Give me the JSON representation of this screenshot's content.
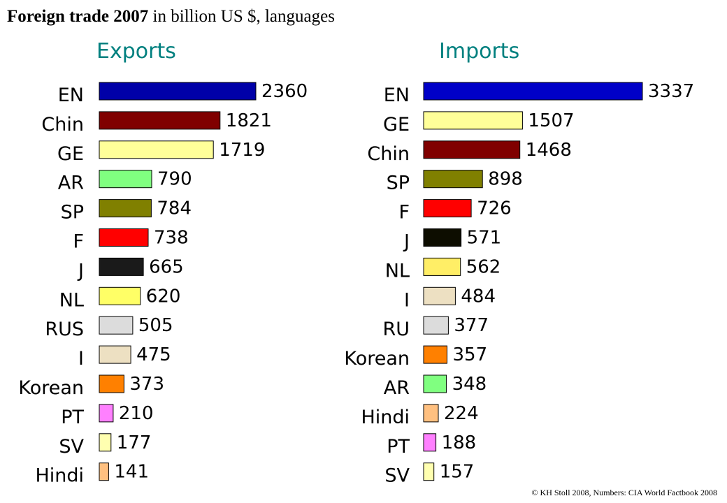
{
  "title_bold": "Foreign trade 2007",
  "title_rest": " in billion US $, languages",
  "footer": "© KH Stoll 2008, Numbers: CIA World Factbook 2008",
  "chart_data": [
    {
      "type": "bar",
      "orientation": "horizontal",
      "title": "Exports",
      "categories": [
        "EN",
        "Chin",
        "GE",
        "AR",
        "SP",
        "F",
        "J",
        "NL",
        "RUS",
        "I",
        "Korean",
        "PT",
        "SV",
        "Hindi"
      ],
      "values": [
        2360,
        1821,
        1719,
        790,
        784,
        738,
        665,
        620,
        505,
        475,
        373,
        210,
        177,
        141
      ],
      "colors": [
        "#0000a8",
        "#800000",
        "#ffff99",
        "#80ff80",
        "#808000",
        "#ff0000",
        "#1a1a1a",
        "#ffff66",
        "#dcdcdc",
        "#ede0c2",
        "#ff8000",
        "#ff80ff",
        "#ffffb0",
        "#ffc080"
      ],
      "xlabel": "",
      "ylabel": "",
      "grid": false,
      "legend": "none"
    },
    {
      "type": "bar",
      "orientation": "horizontal",
      "title": "Imports",
      "categories": [
        "EN",
        "GE",
        "Chin",
        "SP",
        "F",
        "J",
        "NL",
        "I",
        "RU",
        "Korean",
        "AR",
        "Hindi",
        "PT",
        "SV"
      ],
      "values": [
        3337,
        1507,
        1468,
        898,
        726,
        571,
        562,
        484,
        377,
        357,
        348,
        224,
        188,
        157
      ],
      "colors": [
        "#0000c8",
        "#ffff99",
        "#800000",
        "#808000",
        "#ff0000",
        "#0d0d00",
        "#ffee66",
        "#ede0c2",
        "#dcdcdc",
        "#ff8000",
        "#80ff80",
        "#ffc080",
        "#ff80ff",
        "#ffffb0"
      ],
      "xlabel": "",
      "ylabel": "",
      "grid": false,
      "legend": "none"
    }
  ]
}
